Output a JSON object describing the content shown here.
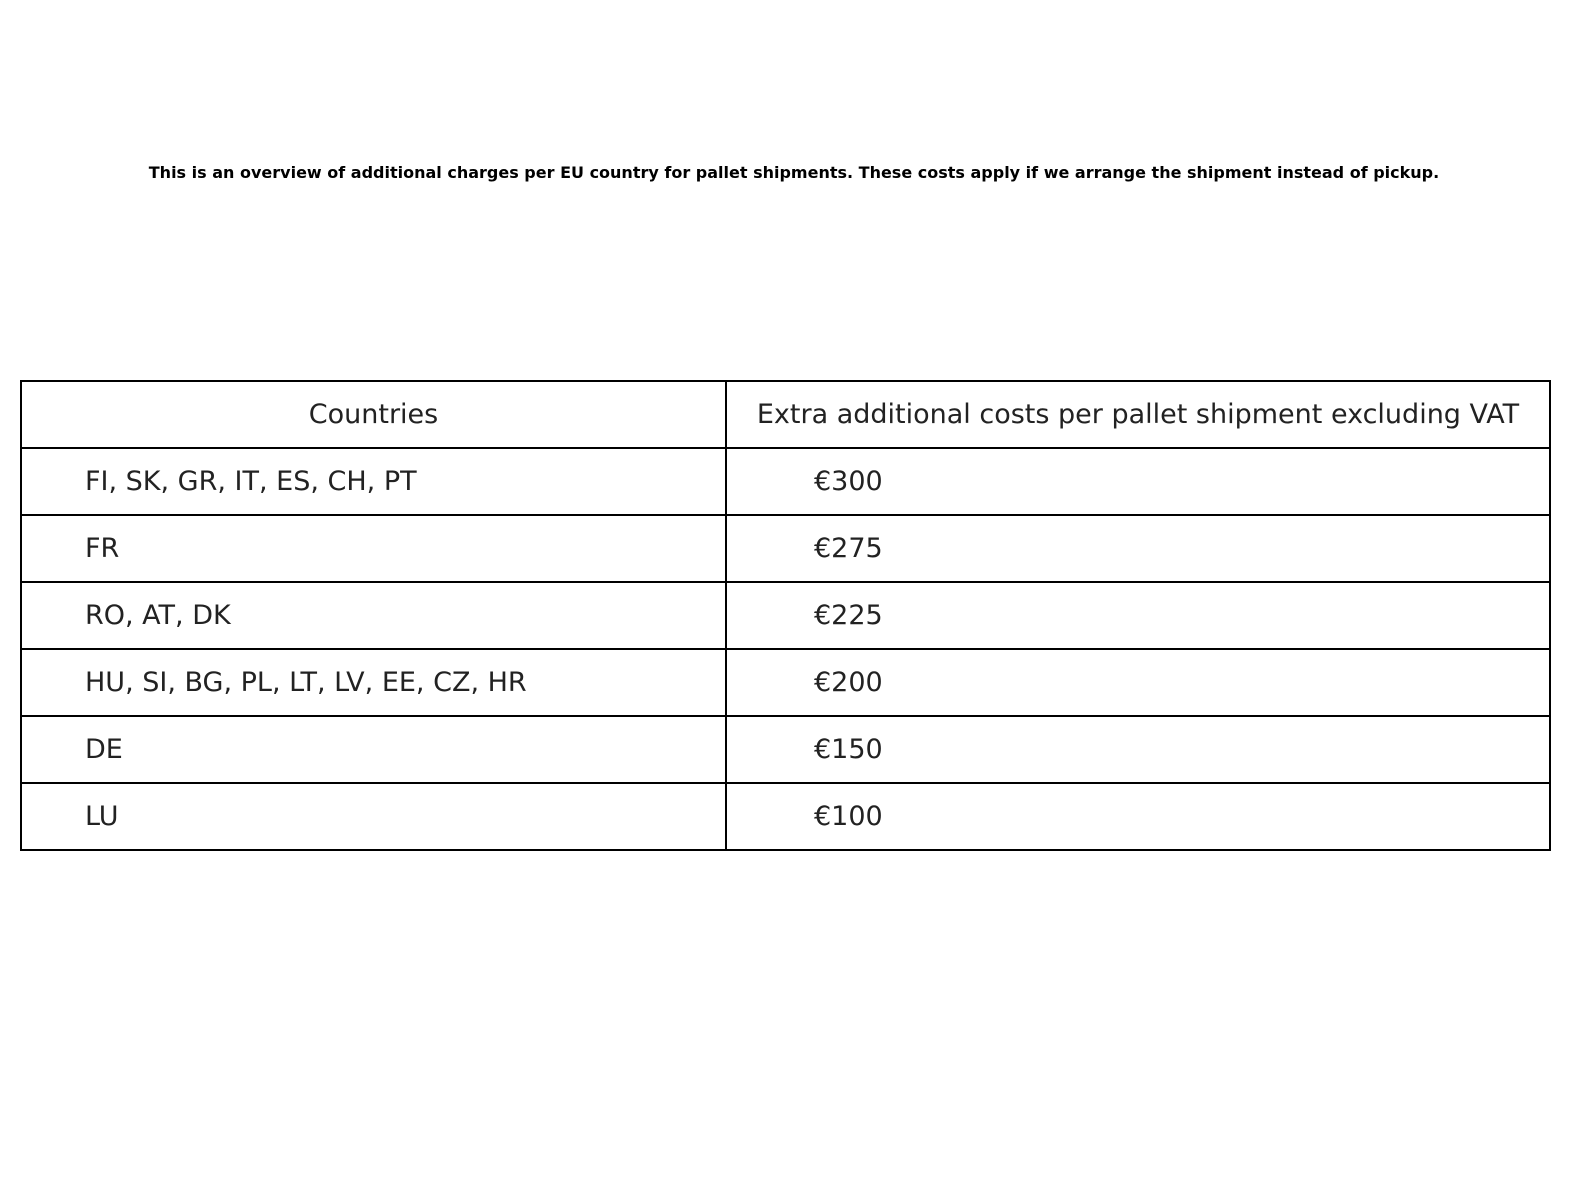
{
  "title": "This is an overview of additional charges per EU country for pallet shipments. These costs apply if we arrange the shipment instead of pickup.",
  "chart_data": {
    "type": "table",
    "columns": [
      "Countries",
      "Extra additional costs per pallet shipment excluding VAT"
    ],
    "rows": [
      [
        "FI, SK, GR, IT, ES, CH, PT",
        "€300"
      ],
      [
        "FR",
        "€275"
      ],
      [
        "RO, AT, DK",
        "€225"
      ],
      [
        "HU, SI, BG, PL, LT, LV, EE, CZ, HR",
        "€200"
      ],
      [
        "DE",
        "€150"
      ],
      [
        "LU",
        "€100"
      ]
    ]
  }
}
